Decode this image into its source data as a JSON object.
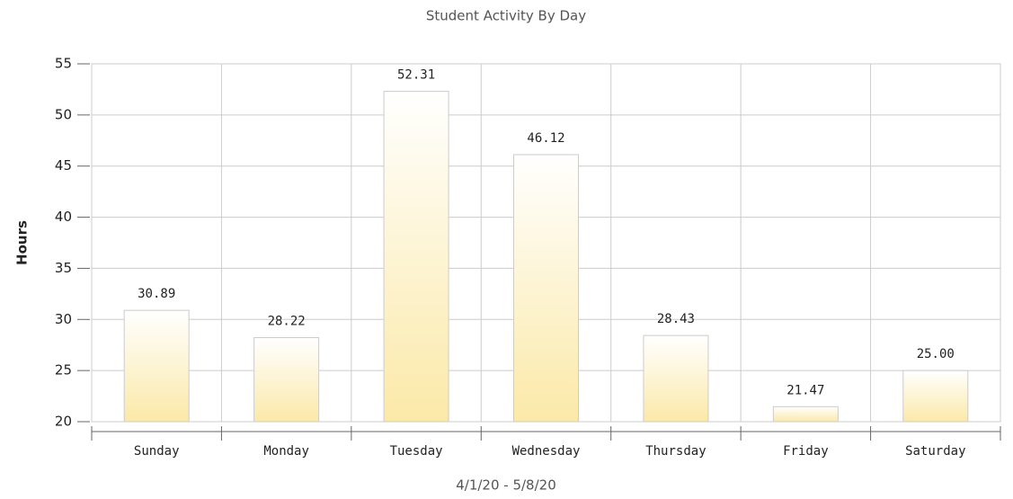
{
  "chart_data": {
    "type": "bar",
    "title": "Student Activity By Day",
    "y_label": "Hours",
    "x_label": "4/1/20 - 5/8/20",
    "categories": [
      "Sunday",
      "Monday",
      "Tuesday",
      "Wednesday",
      "Thursday",
      "Friday",
      "Saturday"
    ],
    "values": [
      30.89,
      28.22,
      52.31,
      46.12,
      28.43,
      21.47,
      25
    ],
    "value_labels": [
      "30.89",
      "28.22",
      "52.31",
      "46.12",
      "28.43",
      "21.47",
      "25.00"
    ],
    "color": "#fbe9a8",
    "ylim": [
      20,
      55
    ],
    "yticks": [
      20,
      25,
      30,
      35,
      40,
      45,
      50,
      55
    ],
    "grid": true
  }
}
